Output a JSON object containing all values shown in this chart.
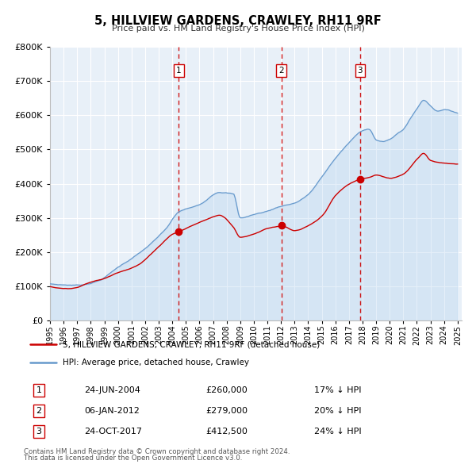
{
  "title": "5, HILLVIEW GARDENS, CRAWLEY, RH11 9RF",
  "subtitle": "Price paid vs. HM Land Registry's House Price Index (HPI)",
  "ylim": [
    0,
    800000
  ],
  "yticks": [
    0,
    100000,
    200000,
    300000,
    400000,
    500000,
    600000,
    700000,
    800000
  ],
  "sale_color": "#cc0000",
  "hpi_color": "#6699cc",
  "sale_label": "5, HILLVIEW GARDENS, CRAWLEY, RH11 9RF (detached house)",
  "hpi_label": "HPI: Average price, detached house, Crawley",
  "transactions": [
    {
      "num": 1,
      "date": "2004-06-24",
      "display_date": "24-JUN-2004",
      "price": 260000,
      "price_str": "£260,000",
      "pct": "17%"
    },
    {
      "num": 2,
      "date": "2012-01-06",
      "display_date": "06-JAN-2012",
      "price": 279000,
      "price_str": "£279,000",
      "pct": "20%"
    },
    {
      "num": 3,
      "date": "2017-10-24",
      "display_date": "24-OCT-2017",
      "price": 412500,
      "price_str": "£412,500",
      "pct": "24%"
    }
  ],
  "footnote_line1": "Contains HM Land Registry data © Crown copyright and database right 2024.",
  "footnote_line2": "This data is licensed under the Open Government Licence v3.0.",
  "x_start_year": 1995,
  "x_end_year": 2025
}
